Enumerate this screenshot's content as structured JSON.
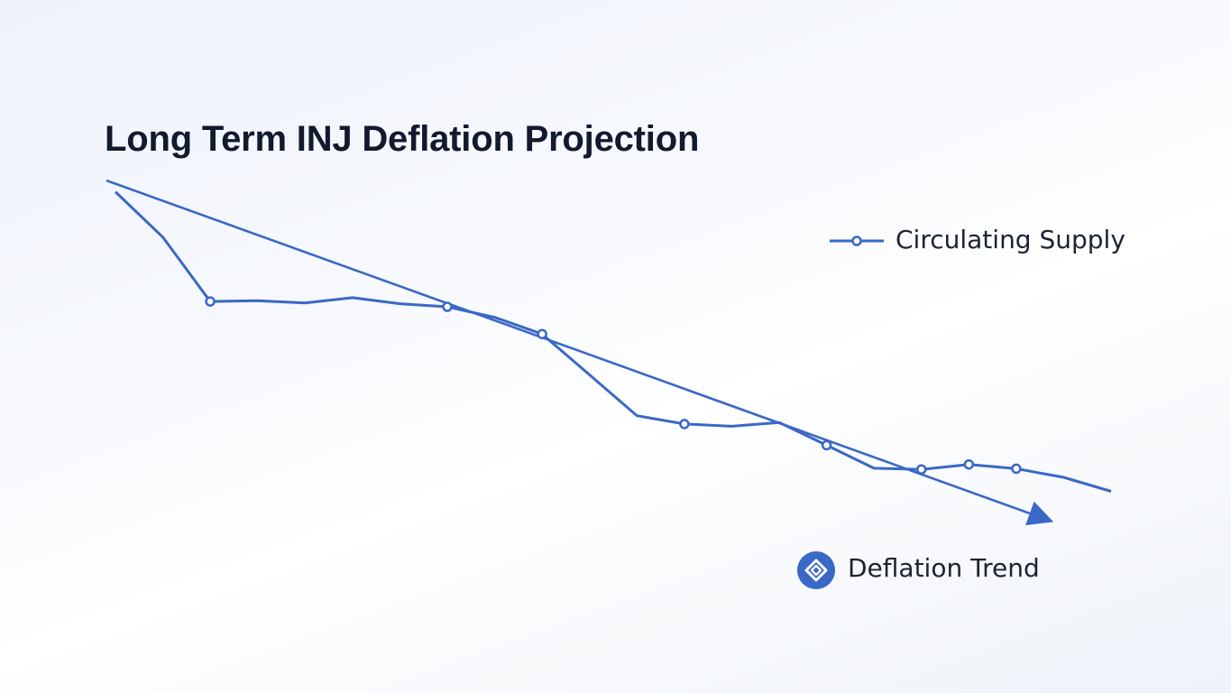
{
  "chart_data": {
    "type": "line",
    "title": "Long Term INJ Deflation Projection",
    "xlabel": "",
    "ylabel": "",
    "grid": false,
    "legend_placement": "right",
    "series": [
      {
        "name": "Circulating Supply",
        "style": "line-with-markers",
        "values": [
          100,
          88,
          71,
          71.2,
          70.6,
          72,
          70.4,
          69.6,
          66.8,
          62.4,
          51.6,
          40.8,
          38.6,
          38,
          39,
          33,
          26.9,
          26.6,
          27.9,
          26.8,
          24.5,
          20.8
        ],
        "markers": [
          2,
          7,
          9,
          12,
          15,
          17,
          18,
          19
        ]
      },
      {
        "name": "Deflation Trend",
        "style": "trend-arrow",
        "x": [
          0,
          19.5
        ],
        "values": [
          103,
          14
        ]
      }
    ],
    "colors": {
      "line": "#3a68c6",
      "legend_icon": "#3a68c6"
    },
    "legend_icons": {
      "Circulating Supply": "line-marker-icon",
      "Deflation Trend": "injective-logo-icon"
    }
  }
}
